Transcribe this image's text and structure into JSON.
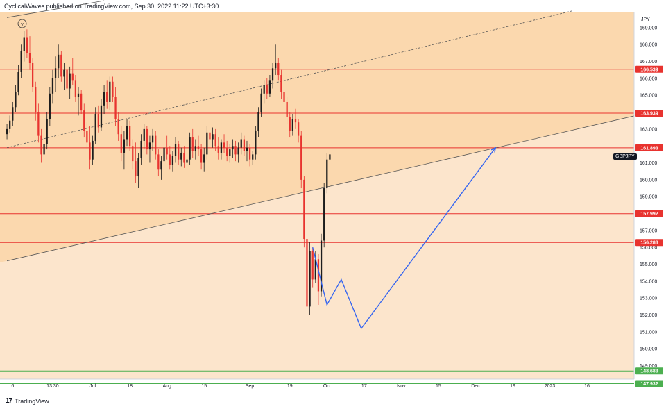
{
  "header": {
    "text": "CyclicalWaves published on TradingView.com, Sep 30, 2022 11:22 UTC+3:30"
  },
  "footer": {
    "brand": "TradingView",
    "mark": "17"
  },
  "symbol": "GBPJPY",
  "currency": "JPY",
  "wave_marker": "v",
  "colors": {
    "zone_upper": "#fbd8ae",
    "zone_lower": "#fce5cc",
    "resistance": "#e8332f",
    "support": "#4caf50",
    "projection": "#3565f0",
    "candle_up": "#1d1d1d",
    "candle_down": "#e8332f",
    "trendline": "#555555"
  },
  "chart_data": {
    "type": "candlestick",
    "title": "",
    "ylim": [
      148.2,
      169.9
    ],
    "y_ticks": [
      "169.000",
      "168.000",
      "167.000",
      "166.000",
      "165.000",
      "164.000",
      "163.000",
      "162.000",
      "161.000",
      "160.000",
      "159.000",
      "158.000",
      "157.000",
      "156.000",
      "155.000",
      "154.000",
      "153.000",
      "152.000",
      "151.000",
      "150.000",
      "149.000"
    ],
    "x_ticks": [
      {
        "label": "6",
        "idx": 2
      },
      {
        "label": "13:30",
        "idx": 16
      },
      {
        "label": "Jul",
        "idx": 30
      },
      {
        "label": "18",
        "idx": 43
      },
      {
        "label": "Aug",
        "idx": 56
      },
      {
        "label": "15",
        "idx": 69
      },
      {
        "label": "Sep",
        "idx": 85
      },
      {
        "label": "19",
        "idx": 99
      },
      {
        "label": "Oct",
        "idx": 112
      },
      {
        "label": "17",
        "idx": 125
      },
      {
        "label": "Nov",
        "idx": 138
      },
      {
        "label": "15",
        "idx": 151
      },
      {
        "label": "Dec",
        "idx": 164
      },
      {
        "label": "19",
        "idx": 177
      },
      {
        "label": "2023",
        "idx": 190
      },
      {
        "label": "16",
        "idx": 203
      }
    ],
    "x_count": 220,
    "horizontal_levels": [
      {
        "value": 166.539,
        "label": "166.539",
        "kind": "resistance"
      },
      {
        "value": 163.939,
        "label": "163.939",
        "kind": "resistance"
      },
      {
        "value": 161.893,
        "label": "161.893",
        "kind": "resistance"
      },
      {
        "value": 157.992,
        "label": "157.992",
        "kind": "resistance"
      },
      {
        "value": 156.288,
        "label": "156.288",
        "kind": "resistance"
      },
      {
        "value": 148.683,
        "label": "148.683",
        "kind": "support"
      },
      {
        "value": 147.932,
        "label": "147.932",
        "kind": "support"
      }
    ],
    "trendlines": [
      {
        "name": "upper-channel",
        "style": "solid",
        "from": [
          0,
          169.6
        ],
        "to": [
          34,
          170.6
        ]
      },
      {
        "name": "dashed-channel",
        "style": "dashed",
        "from": [
          0,
          161.9
        ],
        "to": [
          198,
          170.0
        ]
      },
      {
        "name": "lower-channel",
        "style": "solid",
        "from": [
          0,
          155.2
        ],
        "to": [
          220,
          163.8
        ]
      }
    ],
    "projection": [
      [
        107,
        156.0
      ],
      [
        112,
        152.6
      ],
      [
        117,
        154.1
      ],
      [
        124,
        151.2
      ],
      [
        171,
        161.9
      ]
    ],
    "candles": [
      [
        0,
        162.7,
        163.3,
        162.4,
        163.0
      ],
      [
        1,
        163.0,
        163.8,
        162.8,
        163.5
      ],
      [
        2,
        163.5,
        164.6,
        163.2,
        164.3
      ],
      [
        3,
        164.3,
        165.6,
        164.0,
        165.2
      ],
      [
        4,
        165.2,
        166.8,
        165.0,
        166.4
      ],
      [
        5,
        166.4,
        168.0,
        166.0,
        167.6
      ],
      [
        6,
        167.6,
        168.8,
        167.0,
        168.4
      ],
      [
        7,
        168.4,
        168.9,
        167.2,
        167.5
      ],
      [
        8,
        167.5,
        168.5,
        166.5,
        166.9
      ],
      [
        9,
        166.9,
        167.2,
        165.2,
        165.5
      ],
      [
        10,
        165.5,
        165.8,
        163.5,
        164.0
      ],
      [
        11,
        164.0,
        164.5,
        162.2,
        162.6
      ],
      [
        12,
        162.6,
        163.0,
        161.0,
        161.5
      ],
      [
        13,
        161.5,
        162.5,
        160.0,
        162.1
      ],
      [
        14,
        162.1,
        164.0,
        161.8,
        163.6
      ],
      [
        15,
        163.6,
        165.5,
        163.2,
        165.1
      ],
      [
        16,
        165.1,
        166.5,
        164.5,
        166.0
      ],
      [
        17,
        166.0,
        167.3,
        165.2,
        166.6
      ],
      [
        18,
        166.6,
        168.0,
        166.0,
        167.4
      ],
      [
        19,
        167.4,
        167.6,
        165.8,
        166.1
      ],
      [
        20,
        166.1,
        166.9,
        165.3,
        166.5
      ],
      [
        21,
        166.5,
        167.0,
        165.1,
        165.4
      ],
      [
        22,
        165.4,
        166.7,
        164.8,
        166.3
      ],
      [
        23,
        166.3,
        167.2,
        165.6,
        165.9
      ],
      [
        24,
        165.9,
        166.2,
        164.6,
        164.9
      ],
      [
        25,
        164.9,
        165.5,
        163.8,
        165.1
      ],
      [
        26,
        165.1,
        165.3,
        163.9,
        164.1
      ],
      [
        27,
        164.1,
        164.5,
        162.5,
        162.9
      ],
      [
        28,
        162.9,
        163.4,
        161.8,
        162.2
      ],
      [
        29,
        162.2,
        163.2,
        160.6,
        161.2
      ],
      [
        30,
        161.2,
        162.6,
        160.9,
        162.3
      ],
      [
        31,
        162.3,
        164.3,
        162.1,
        163.9
      ],
      [
        32,
        163.9,
        164.4,
        162.8,
        163.1
      ],
      [
        33,
        163.1,
        164.8,
        162.9,
        164.4
      ],
      [
        34,
        164.4,
        165.6,
        163.9,
        165.2
      ],
      [
        35,
        165.2,
        165.9,
        164.2,
        164.6
      ],
      [
        36,
        164.6,
        166.1,
        164.1,
        165.8
      ],
      [
        37,
        165.8,
        166.1,
        164.6,
        164.9
      ],
      [
        38,
        164.9,
        165.5,
        163.2,
        163.6
      ],
      [
        39,
        163.6,
        164.0,
        162.3,
        162.7
      ],
      [
        40,
        162.7,
        163.2,
        161.1,
        161.6
      ],
      [
        41,
        161.6,
        162.9,
        160.6,
        162.4
      ],
      [
        42,
        162.4,
        163.6,
        162.0,
        163.2
      ],
      [
        43,
        163.2,
        163.5,
        161.7,
        162.0
      ],
      [
        44,
        162.0,
        162.4,
        160.6,
        161.1
      ],
      [
        45,
        161.1,
        162.2,
        159.8,
        160.2
      ],
      [
        46,
        160.2,
        161.6,
        159.5,
        161.3
      ],
      [
        47,
        161.3,
        162.7,
        160.9,
        162.3
      ],
      [
        48,
        162.3,
        163.3,
        161.8,
        163.0
      ],
      [
        49,
        163.0,
        163.2,
        161.5,
        161.8
      ],
      [
        50,
        161.8,
        162.6,
        161.0,
        162.2
      ],
      [
        51,
        162.2,
        163.0,
        161.7,
        162.6
      ],
      [
        52,
        162.6,
        162.9,
        161.2,
        161.5
      ],
      [
        53,
        161.5,
        161.8,
        160.2,
        160.6
      ],
      [
        54,
        160.6,
        161.4,
        160.0,
        161.1
      ],
      [
        55,
        161.1,
        162.2,
        160.7,
        161.9
      ],
      [
        56,
        161.9,
        162.6,
        161.2,
        161.5
      ],
      [
        57,
        161.5,
        162.0,
        160.6,
        160.9
      ],
      [
        58,
        160.9,
        161.7,
        160.5,
        161.4
      ],
      [
        59,
        161.4,
        162.5,
        161.0,
        162.1
      ],
      [
        60,
        162.1,
        162.3,
        160.9,
        161.2
      ],
      [
        61,
        161.2,
        161.9,
        160.8,
        161.6
      ],
      [
        62,
        161.6,
        162.0,
        160.7,
        161.0
      ],
      [
        63,
        161.0,
        161.5,
        160.4,
        161.2
      ],
      [
        64,
        161.2,
        162.8,
        160.9,
        162.5
      ],
      [
        65,
        162.5,
        163.0,
        161.3,
        161.7
      ],
      [
        66,
        161.7,
        162.4,
        161.2,
        162.0
      ],
      [
        67,
        162.0,
        162.6,
        161.4,
        161.8
      ],
      [
        68,
        161.8,
        162.1,
        160.6,
        161.0
      ],
      [
        69,
        161.0,
        161.9,
        160.5,
        161.5
      ],
      [
        70,
        161.5,
        163.2,
        161.2,
        162.8
      ],
      [
        71,
        162.8,
        163.4,
        162.1,
        162.4
      ],
      [
        72,
        162.4,
        163.1,
        161.9,
        162.7
      ],
      [
        73,
        162.7,
        163.0,
        161.7,
        162.0
      ],
      [
        74,
        162.0,
        162.5,
        161.2,
        161.6
      ],
      [
        75,
        161.6,
        162.4,
        161.2,
        162.2
      ],
      [
        76,
        162.2,
        162.7,
        161.6,
        161.9
      ],
      [
        77,
        161.9,
        162.3,
        161.1,
        161.4
      ],
      [
        78,
        161.4,
        162.1,
        161.0,
        161.8
      ],
      [
        79,
        161.8,
        162.4,
        161.3,
        162.0
      ],
      [
        80,
        162.0,
        162.3,
        161.1,
        161.5
      ],
      [
        81,
        161.5,
        162.2,
        161.0,
        161.9
      ],
      [
        82,
        161.9,
        162.8,
        161.5,
        162.4
      ],
      [
        83,
        162.4,
        162.6,
        161.4,
        161.7
      ],
      [
        84,
        161.7,
        162.3,
        161.1,
        161.9
      ],
      [
        85,
        161.9,
        162.1,
        160.8,
        161.2
      ],
      [
        86,
        161.2,
        161.7,
        160.9,
        161.5
      ],
      [
        87,
        161.5,
        163.2,
        161.2,
        162.9
      ],
      [
        88,
        162.9,
        164.3,
        162.5,
        164.0
      ],
      [
        89,
        164.0,
        165.4,
        163.7,
        165.1
      ],
      [
        90,
        165.1,
        165.9,
        164.5,
        165.6
      ],
      [
        91,
        165.6,
        166.0,
        164.8,
        165.1
      ],
      [
        92,
        165.1,
        166.2,
        164.9,
        165.9
      ],
      [
        93,
        165.9,
        166.9,
        165.4,
        166.6
      ],
      [
        94,
        166.6,
        168.0,
        166.2,
        166.9
      ],
      [
        95,
        166.9,
        167.2,
        165.9,
        166.2
      ],
      [
        96,
        166.2,
        166.5,
        164.8,
        165.2
      ],
      [
        97,
        165.2,
        165.6,
        164.1,
        164.6
      ],
      [
        98,
        164.6,
        164.9,
        163.3,
        163.7
      ],
      [
        99,
        163.7,
        164.0,
        162.5,
        162.9
      ],
      [
        100,
        162.9,
        163.9,
        162.6,
        163.6
      ],
      [
        101,
        163.6,
        164.2,
        163.0,
        163.4
      ],
      [
        102,
        163.4,
        163.6,
        162.2,
        162.6
      ],
      [
        103,
        162.6,
        162.9,
        159.5,
        160.0
      ],
      [
        104,
        160.0,
        160.2,
        156.0,
        156.5
      ],
      [
        105,
        156.5,
        156.8,
        149.8,
        152.5
      ],
      [
        106,
        152.5,
        156.3,
        152.0,
        155.8
      ],
      [
        107,
        155.8,
        156.0,
        153.6,
        154.1
      ],
      [
        108,
        154.1,
        155.8,
        153.9,
        155.3
      ],
      [
        109,
        155.3,
        155.6,
        152.6,
        153.4
      ],
      [
        110,
        153.4,
        156.8,
        153.1,
        156.4
      ],
      [
        111,
        156.4,
        159.8,
        156.0,
        159.5
      ],
      [
        112,
        159.5,
        161.6,
        159.2,
        161.2
      ],
      [
        113,
        161.2,
        161.9,
        160.4,
        161.5
      ]
    ]
  }
}
